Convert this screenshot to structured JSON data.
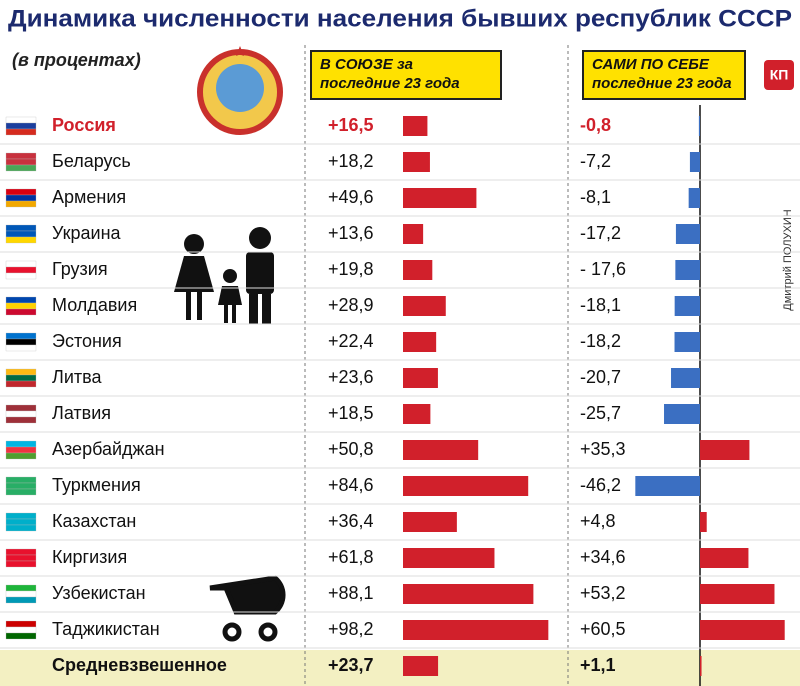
{
  "chart_data": {
    "type": "bar",
    "title": "Динамика численности населения бывших республик СССР",
    "subtitle": "(в процентах)",
    "credit": "Дмитрий ПОЛУХИН",
    "logo": "КП",
    "categories": [
      "Россия",
      "Беларусь",
      "Армения",
      "Украина",
      "Грузия",
      "Молдавия",
      "Эстония",
      "Литва",
      "Латвия",
      "Азербайджан",
      "Туркмения",
      "Казахстан",
      "Киргизия",
      "Узбекистан",
      "Таджикистан",
      "Средневзвешенное"
    ],
    "series": [
      {
        "name": "В СОЮЗЕ за последние 23 года",
        "color": "#d1202b",
        "values": [
          16.5,
          18.2,
          49.6,
          13.6,
          19.8,
          28.9,
          22.4,
          23.6,
          18.5,
          50.8,
          84.6,
          36.4,
          61.8,
          88.1,
          98.2,
          23.7
        ],
        "value_labels": [
          "+16,5",
          "+18,2",
          "+49,6",
          "+13,6",
          "+19,8",
          "+28,9",
          "+22,4",
          "+23,6",
          "+18,5",
          "+50,8",
          "+84,6",
          "+36,4",
          "+61,8",
          "+88,1",
          "+98,2",
          "+23,7"
        ]
      },
      {
        "name": "САМИ ПО СЕБЕ последние 23 года",
        "color": "#3b6fc2",
        "values": [
          -0.8,
          -7.2,
          -8.1,
          -17.2,
          -17.6,
          -18.1,
          -18.2,
          -20.7,
          -25.7,
          35.3,
          -46.2,
          4.8,
          34.6,
          53.2,
          60.5,
          1.1
        ],
        "value_labels": [
          "-0,8",
          "-7,2",
          "-8,1",
          "-17,2",
          "- 17,6",
          "-18,1",
          "-18,2",
          "-20,7",
          "-25,7",
          "+35,3",
          "-46,2",
          "+4,8",
          "+34,6",
          "+53,2",
          "+60,5",
          "+1,1"
        ]
      }
    ]
  }
}
